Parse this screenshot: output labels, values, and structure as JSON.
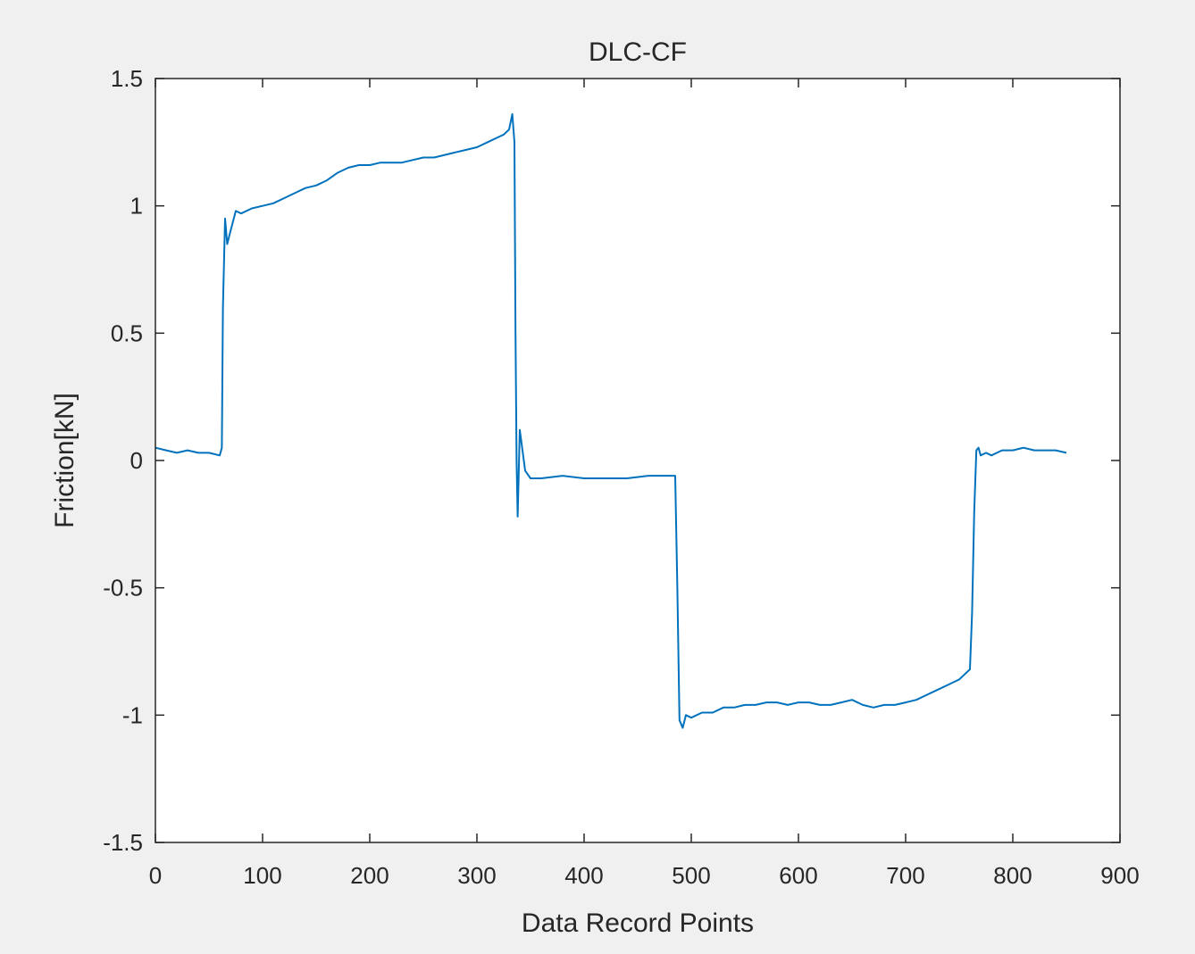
{
  "chart_data": {
    "type": "line",
    "title": "DLC-CF",
    "xlabel": "Data Record Points",
    "ylabel": "Friction[kN]",
    "xlim": [
      0,
      900
    ],
    "ylim": [
      -1.5,
      1.5
    ],
    "xticks": [
      0,
      100,
      200,
      300,
      400,
      500,
      600,
      700,
      800,
      900
    ],
    "xtick_labels": [
      "0",
      "100",
      "200",
      "300",
      "400",
      "500",
      "600",
      "700",
      "800",
      "900"
    ],
    "yticks": [
      -1.5,
      -1,
      -0.5,
      0,
      0.5,
      1,
      1.5
    ],
    "ytick_labels": [
      "-1.5",
      "-1",
      "-0.5",
      "0",
      "0.5",
      "1",
      "1.5"
    ],
    "grid": false,
    "line_color": "#0072bd",
    "series": [
      {
        "x": [
          0,
          10,
          20,
          30,
          40,
          50,
          60,
          62,
          63,
          65,
          67,
          70,
          75,
          80,
          90,
          100,
          110,
          120,
          130,
          140,
          150,
          160,
          170,
          180,
          190,
          200,
          210,
          220,
          230,
          240,
          250,
          260,
          270,
          280,
          290,
          300,
          310,
          320,
          325,
          330,
          333,
          335,
          336,
          337,
          338,
          340,
          345,
          350,
          360,
          380,
          400,
          420,
          440,
          460,
          480,
          485,
          487,
          489,
          492,
          495,
          500,
          510,
          520,
          530,
          540,
          550,
          560,
          570,
          580,
          590,
          600,
          610,
          620,
          630,
          640,
          650,
          660,
          670,
          680,
          690,
          700,
          710,
          720,
          730,
          740,
          750,
          755,
          760,
          762,
          764,
          766,
          768,
          770,
          775,
          780,
          790,
          800,
          810,
          820,
          830,
          840,
          850
        ],
        "y": [
          0.05,
          0.04,
          0.03,
          0.04,
          0.03,
          0.03,
          0.02,
          0.05,
          0.6,
          0.95,
          0.85,
          0.9,
          0.98,
          0.97,
          0.99,
          1.0,
          1.01,
          1.03,
          1.05,
          1.07,
          1.08,
          1.1,
          1.13,
          1.15,
          1.16,
          1.16,
          1.17,
          1.17,
          1.17,
          1.18,
          1.19,
          1.19,
          1.2,
          1.21,
          1.22,
          1.23,
          1.25,
          1.27,
          1.28,
          1.3,
          1.36,
          1.25,
          0.5,
          0.0,
          -0.22,
          0.12,
          -0.04,
          -0.07,
          -0.07,
          -0.06,
          -0.07,
          -0.07,
          -0.07,
          -0.06,
          -0.06,
          -0.06,
          -0.5,
          -1.02,
          -1.05,
          -1.0,
          -1.01,
          -0.99,
          -0.99,
          -0.97,
          -0.97,
          -0.96,
          -0.96,
          -0.95,
          -0.95,
          -0.96,
          -0.95,
          -0.95,
          -0.96,
          -0.96,
          -0.95,
          -0.94,
          -0.96,
          -0.97,
          -0.96,
          -0.96,
          -0.95,
          -0.94,
          -0.92,
          -0.9,
          -0.88,
          -0.86,
          -0.84,
          -0.82,
          -0.6,
          -0.2,
          0.04,
          0.05,
          0.02,
          0.03,
          0.02,
          0.04,
          0.04,
          0.05,
          0.04,
          0.04,
          0.04,
          0.03
        ]
      }
    ]
  }
}
